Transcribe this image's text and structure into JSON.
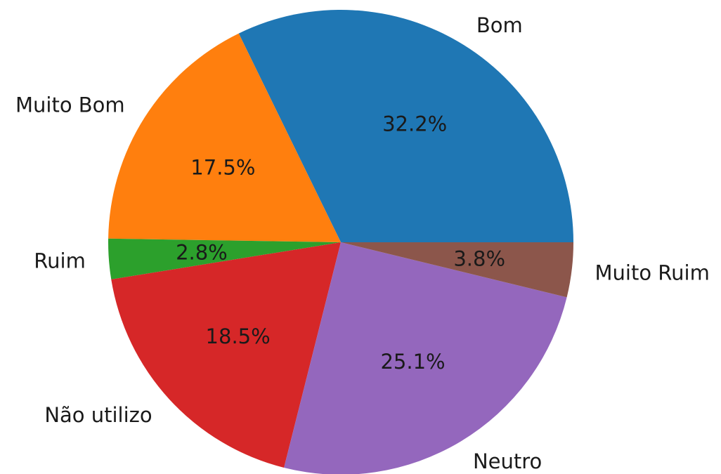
{
  "chart_data": {
    "type": "pie",
    "start_angle_deg": 0,
    "direction": "counterclockwise",
    "slices": [
      {
        "label": "Bom",
        "value": 32.2,
        "pct_label": "32.2%",
        "color": "#1f77b4"
      },
      {
        "label": "Muito Bom",
        "value": 17.5,
        "pct_label": "17.5%",
        "color": "#ff7f0e"
      },
      {
        "label": "Ruim",
        "value": 2.8,
        "pct_label": "2.8%",
        "color": "#2ca02c"
      },
      {
        "label": "Não utilizo",
        "value": 18.5,
        "pct_label": "18.5%",
        "color": "#d62728"
      },
      {
        "label": "Neutro",
        "value": 25.1,
        "pct_label": "25.1%",
        "color": "#9467bd"
      },
      {
        "label": "Muito Ruim",
        "value": 3.8,
        "pct_label": "3.8%",
        "color": "#8c564b"
      }
    ]
  }
}
